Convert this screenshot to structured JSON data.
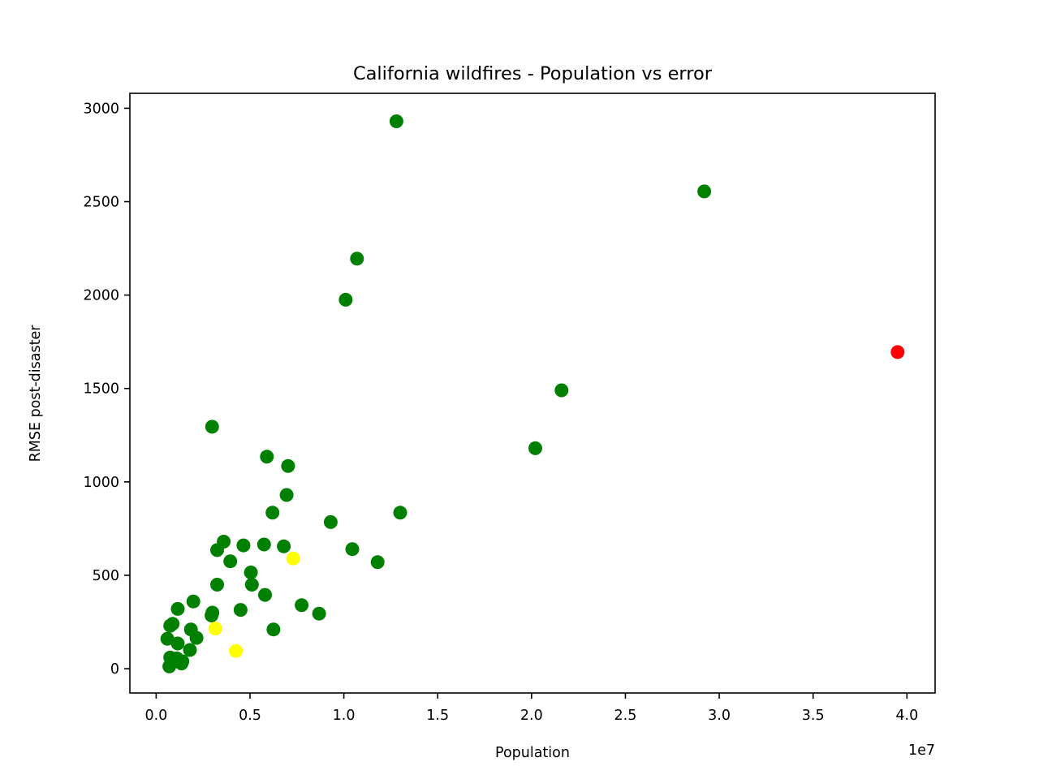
{
  "chart_data": {
    "type": "scatter",
    "title": "California wildfires - Population vs error",
    "xlabel": "Population",
    "ylabel": "RMSE post-disaster",
    "x_offset_label": "1e7",
    "xlim": [
      -1400000,
      41500000
    ],
    "ylim": [
      -130,
      3080
    ],
    "x_ticks": [
      0,
      5000000,
      10000000,
      15000000,
      20000000,
      25000000,
      30000000,
      35000000,
      40000000
    ],
    "x_tick_labels": [
      "0.0",
      "0.5",
      "1.0",
      "1.5",
      "2.0",
      "2.5",
      "3.0",
      "3.5",
      "4.0"
    ],
    "y_ticks": [
      0,
      500,
      1000,
      1500,
      2000,
      2500,
      3000
    ],
    "y_tick_labels": [
      "0",
      "500",
      "1000",
      "1500",
      "2000",
      "2500",
      "3000"
    ],
    "grid": false,
    "colors": {
      "green": "#008000",
      "yellow": "#ffff00",
      "red": "#ff0000"
    },
    "points": [
      {
        "x": 12800000,
        "y": 2930,
        "color": "green"
      },
      {
        "x": 29200000,
        "y": 2555,
        "color": "green"
      },
      {
        "x": 10700000,
        "y": 2195,
        "color": "green"
      },
      {
        "x": 10100000,
        "y": 1975,
        "color": "green"
      },
      {
        "x": 39500000,
        "y": 1695,
        "color": "red"
      },
      {
        "x": 21600000,
        "y": 1490,
        "color": "green"
      },
      {
        "x": 2980000,
        "y": 1295,
        "color": "green"
      },
      {
        "x": 20200000,
        "y": 1180,
        "color": "green"
      },
      {
        "x": 5900000,
        "y": 1135,
        "color": "green"
      },
      {
        "x": 7030000,
        "y": 1085,
        "color": "green"
      },
      {
        "x": 6950000,
        "y": 930,
        "color": "green"
      },
      {
        "x": 6200000,
        "y": 835,
        "color": "green"
      },
      {
        "x": 13000000,
        "y": 835,
        "color": "green"
      },
      {
        "x": 9300000,
        "y": 785,
        "color": "green"
      },
      {
        "x": 3600000,
        "y": 680,
        "color": "green"
      },
      {
        "x": 4650000,
        "y": 660,
        "color": "green"
      },
      {
        "x": 5750000,
        "y": 665,
        "color": "green"
      },
      {
        "x": 6800000,
        "y": 655,
        "color": "green"
      },
      {
        "x": 10450000,
        "y": 640,
        "color": "green"
      },
      {
        "x": 3250000,
        "y": 635,
        "color": "green"
      },
      {
        "x": 7300000,
        "y": 590,
        "color": "yellow"
      },
      {
        "x": 3950000,
        "y": 575,
        "color": "green"
      },
      {
        "x": 11800000,
        "y": 570,
        "color": "green"
      },
      {
        "x": 5050000,
        "y": 515,
        "color": "green"
      },
      {
        "x": 3250000,
        "y": 450,
        "color": "green"
      },
      {
        "x": 5100000,
        "y": 450,
        "color": "green"
      },
      {
        "x": 5800000,
        "y": 395,
        "color": "green"
      },
      {
        "x": 1980000,
        "y": 360,
        "color": "green"
      },
      {
        "x": 7750000,
        "y": 340,
        "color": "green"
      },
      {
        "x": 1150000,
        "y": 320,
        "color": "green"
      },
      {
        "x": 4500000,
        "y": 315,
        "color": "green"
      },
      {
        "x": 3000000,
        "y": 300,
        "color": "green"
      },
      {
        "x": 8680000,
        "y": 295,
        "color": "green"
      },
      {
        "x": 2950000,
        "y": 285,
        "color": "green"
      },
      {
        "x": 880000,
        "y": 240,
        "color": "green"
      },
      {
        "x": 750000,
        "y": 230,
        "color": "green"
      },
      {
        "x": 3150000,
        "y": 215,
        "color": "yellow"
      },
      {
        "x": 6250000,
        "y": 210,
        "color": "green"
      },
      {
        "x": 1850000,
        "y": 210,
        "color": "green"
      },
      {
        "x": 2150000,
        "y": 165,
        "color": "green"
      },
      {
        "x": 600000,
        "y": 160,
        "color": "green"
      },
      {
        "x": 1150000,
        "y": 135,
        "color": "green"
      },
      {
        "x": 1800000,
        "y": 100,
        "color": "green"
      },
      {
        "x": 4250000,
        "y": 95,
        "color": "yellow"
      },
      {
        "x": 750000,
        "y": 60,
        "color": "green"
      },
      {
        "x": 1100000,
        "y": 55,
        "color": "green"
      },
      {
        "x": 1400000,
        "y": 40,
        "color": "green"
      },
      {
        "x": 1350000,
        "y": 28,
        "color": "green"
      },
      {
        "x": 700000,
        "y": 12,
        "color": "green"
      }
    ]
  }
}
